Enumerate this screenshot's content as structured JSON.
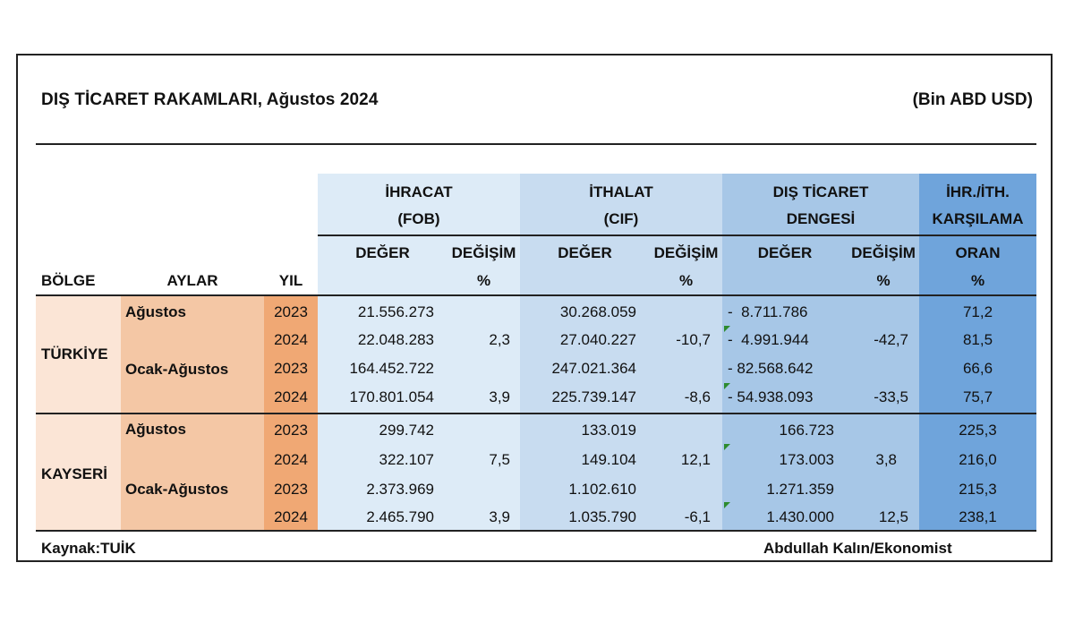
{
  "header": {
    "title": "DIŞ TİCARET RAKAMLARI, Ağustos 2024",
    "unit": "(Bin ABD USD)"
  },
  "columns": {
    "ihracat_l1": "İHRACAT",
    "ihracat_l2": "(FOB)",
    "ithalat_l1": "İTHALAT",
    "ithalat_l2": "(CIF)",
    "denge_l1": "DIŞ TİCARET",
    "denge_l2": "DENGESİ",
    "oran_l1": "İHR./İTH.",
    "oran_l2": "KARŞILAMA",
    "deger": "DEĞER",
    "degisim": "DEĞİŞİM",
    "pct": "%",
    "oran": "ORAN",
    "bolge": "BÖLGE",
    "aylar": "AYLAR",
    "yil": "YIL"
  },
  "regions": [
    {
      "name": "TÜRKİYE",
      "periods": [
        "Ağustos",
        "Ocak-Ağustos"
      ],
      "rows": [
        {
          "yil": "2023",
          "ihr": "21.556.273",
          "ihr_d": "",
          "ith": "30.268.059",
          "ith_d": "",
          "dt": "-  8.711.786",
          "dt_d": "",
          "oran": "71,2"
        },
        {
          "yil": "2024",
          "ihr": "22.048.283",
          "ihr_d": "2,3",
          "ith": "27.040.227",
          "ith_d": "-10,7",
          "dt": "-  4.991.944",
          "dt_d": "-42,7",
          "oran": "81,5"
        },
        {
          "yil": "2023",
          "ihr": "164.452.722",
          "ihr_d": "",
          "ith": "247.021.364",
          "ith_d": "",
          "dt": "- 82.568.642",
          "dt_d": "",
          "oran": "66,6"
        },
        {
          "yil": "2024",
          "ihr": "170.801.054",
          "ihr_d": "3,9",
          "ith": "225.739.147",
          "ith_d": "-8,6",
          "dt": "- 54.938.093",
          "dt_d": "-33,5",
          "oran": "75,7"
        }
      ]
    },
    {
      "name": "KAYSERİ",
      "periods": [
        "Ağustos",
        "Ocak-Ağustos"
      ],
      "rows": [
        {
          "yil": "2023",
          "ihr": "299.742",
          "ihr_d": "",
          "ith": "133.019",
          "ith_d": "",
          "dt": "166.723",
          "dt_d": "",
          "oran": "225,3"
        },
        {
          "yil": "2024",
          "ihr": "322.107",
          "ihr_d": "7,5",
          "ith": "149.104",
          "ith_d": "12,1",
          "dt": "173.003",
          "dt_d": "3,8",
          "oran": "216,0"
        },
        {
          "yil": "2023",
          "ihr": "2.373.969",
          "ihr_d": "",
          "ith": "1.102.610",
          "ith_d": "",
          "dt": "1.271.359",
          "dt_d": "",
          "oran": "215,3"
        },
        {
          "yil": "2024",
          "ihr": "2.465.790",
          "ihr_d": "3,9",
          "ith": "1.035.790",
          "ith_d": "-6,1",
          "dt": "1.430.000",
          "dt_d": "12,5",
          "oran": "238,1"
        }
      ]
    }
  ],
  "footer": {
    "source": "Kaynak:TUİK",
    "author": "Abdullah Kalın/Ekonomist"
  },
  "colors": {
    "ihracat": "#ddebf7",
    "ithalat": "#c8dcf0",
    "denge": "#a7c7e7",
    "oran": "#6fa4db",
    "bolge": "#fbe5d6",
    "aylar": "#f4c7a5",
    "yil": "#f0a874",
    "note_marker": "#2e8b2e"
  }
}
